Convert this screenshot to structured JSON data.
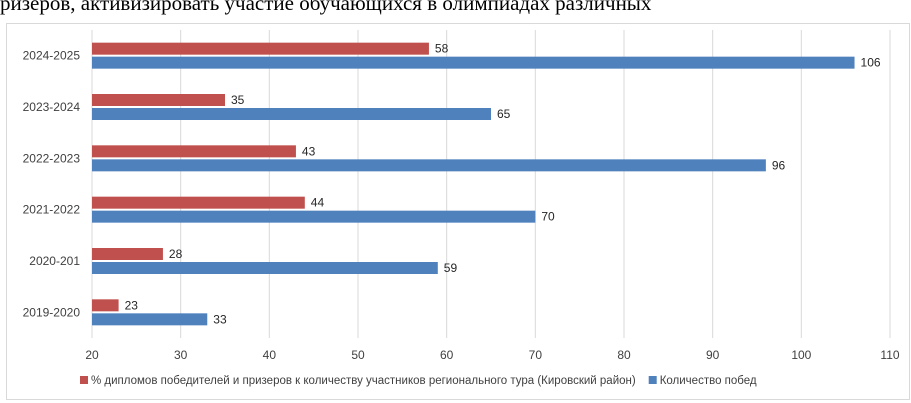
{
  "page": {
    "top_text": "ризёров, активизировать участие обучающихся в олимпиадах различных"
  },
  "chart_data": {
    "type": "bar",
    "orientation": "horizontal",
    "categories": [
      "2019-2020",
      "2020-201",
      "2021-2022",
      "2022-2023",
      "2023-2024",
      "2024-2025"
    ],
    "series": [
      {
        "name": "% дипломов победителей и призеров к количеству участников регионального тура (Кировский район)",
        "values": [
          23,
          28,
          44,
          43,
          35,
          58
        ],
        "color": "#c0504d"
      },
      {
        "name": "Количество побед",
        "values": [
          33,
          59,
          70,
          96,
          65,
          106
        ],
        "color": "#4f81bd"
      }
    ],
    "xlim": [
      20,
      110
    ],
    "xticks": [
      "20",
      "30",
      "40",
      "50",
      "60",
      "70",
      "80",
      "90",
      "100",
      "110"
    ],
    "grid": "vertical",
    "legend": "bottom",
    "title": "",
    "xlabel": "",
    "ylabel": ""
  }
}
